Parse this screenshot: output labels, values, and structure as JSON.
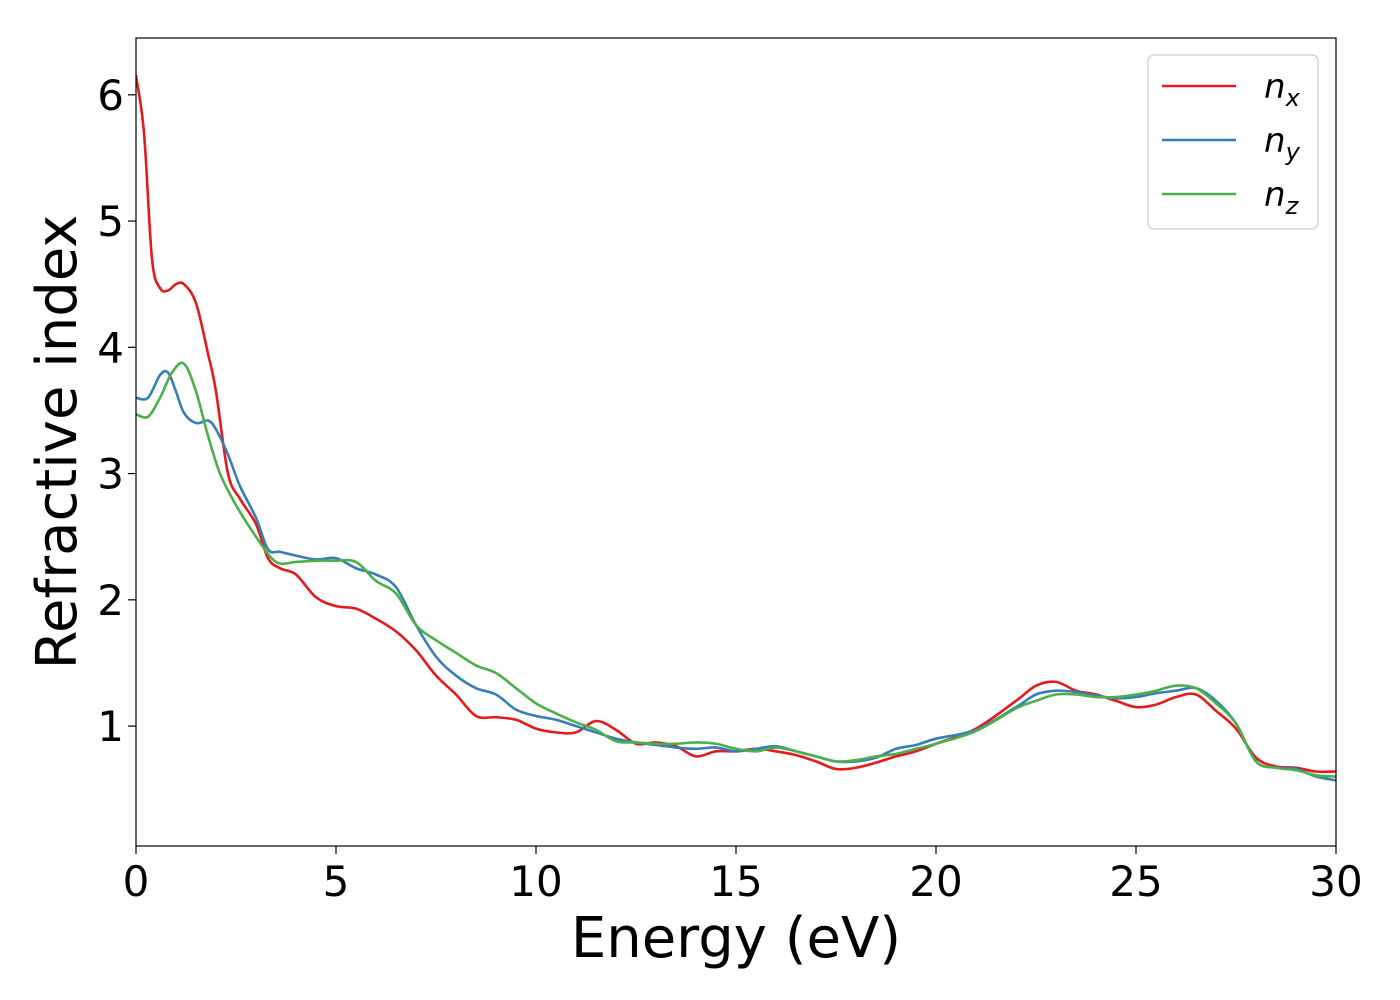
{
  "chart_data": {
    "type": "line",
    "xlabel": "Energy (eV)",
    "ylabel": "Refractive index",
    "xlim": [
      0,
      30
    ],
    "ylim": [
      0.05,
      6.45
    ],
    "xticks": [
      0,
      5,
      10,
      15,
      20,
      25,
      30
    ],
    "xtick_labels": [
      "0",
      "5",
      "10",
      "15",
      "20",
      "25",
      "30"
    ],
    "yticks": [
      1,
      2,
      3,
      4,
      5,
      6
    ],
    "ytick_labels": [
      "1",
      "2",
      "3",
      "4",
      "5",
      "6"
    ],
    "grid": false,
    "legend_position": "top-right",
    "series": [
      {
        "name": "n",
        "subscript": "x",
        "color": "#e41a1c",
        "x": [
          0,
          0.2,
          0.4,
          0.6,
          0.8,
          1.0,
          1.2,
          1.5,
          1.8,
          2.0,
          2.3,
          2.6,
          3.0,
          3.3,
          3.6,
          4.0,
          4.5,
          5.0,
          5.5,
          6.0,
          6.5,
          7.0,
          7.5,
          8.0,
          8.5,
          9.0,
          9.5,
          10.0,
          10.5,
          11.0,
          11.5,
          12.0,
          12.5,
          13.0,
          13.5,
          14.0,
          14.5,
          15.0,
          15.5,
          16.0,
          16.5,
          17.0,
          17.5,
          18.0,
          18.5,
          19.0,
          19.5,
          20.0,
          21.0,
          22.0,
          22.5,
          23.0,
          23.5,
          24.0,
          24.5,
          25.0,
          25.5,
          26.0,
          26.5,
          27.0,
          27.5,
          28.0,
          28.5,
          29.0,
          29.5,
          30.0
        ],
        "values": [
          6.15,
          5.7,
          4.7,
          4.47,
          4.45,
          4.5,
          4.5,
          4.35,
          3.95,
          3.65,
          3.0,
          2.8,
          2.6,
          2.33,
          2.25,
          2.2,
          2.02,
          1.95,
          1.93,
          1.85,
          1.75,
          1.6,
          1.4,
          1.25,
          1.08,
          1.07,
          1.05,
          0.98,
          0.95,
          0.95,
          1.04,
          0.97,
          0.86,
          0.87,
          0.84,
          0.76,
          0.8,
          0.8,
          0.82,
          0.8,
          0.77,
          0.72,
          0.66,
          0.67,
          0.71,
          0.76,
          0.8,
          0.86,
          0.98,
          1.2,
          1.32,
          1.35,
          1.28,
          1.25,
          1.2,
          1.15,
          1.17,
          1.23,
          1.25,
          1.12,
          0.98,
          0.75,
          0.68,
          0.67,
          0.64,
          0.64
        ]
      },
      {
        "name": "n",
        "subscript": "y",
        "color": "#377eb8",
        "x": [
          0,
          0.3,
          0.6,
          0.8,
          1.0,
          1.2,
          1.5,
          1.8,
          2.0,
          2.3,
          2.6,
          3.0,
          3.3,
          3.6,
          4.0,
          4.5,
          5.0,
          5.5,
          6.0,
          6.5,
          7.0,
          7.5,
          8.0,
          8.5,
          9.0,
          9.5,
          10.0,
          10.5,
          11.0,
          11.5,
          12.0,
          12.5,
          13.0,
          13.5,
          14.0,
          14.5,
          15.0,
          15.5,
          16.0,
          16.5,
          17.0,
          17.5,
          18.0,
          18.5,
          19.0,
          19.5,
          20.0,
          21.0,
          22.0,
          22.5,
          23.0,
          23.5,
          24.0,
          24.5,
          25.0,
          25.5,
          26.0,
          26.5,
          27.0,
          27.5,
          28.0,
          28.5,
          29.0,
          29.5,
          30.0
        ],
        "values": [
          3.6,
          3.6,
          3.78,
          3.8,
          3.65,
          3.48,
          3.4,
          3.42,
          3.35,
          3.15,
          2.9,
          2.65,
          2.4,
          2.38,
          2.35,
          2.32,
          2.33,
          2.25,
          2.2,
          2.1,
          1.8,
          1.55,
          1.4,
          1.3,
          1.25,
          1.13,
          1.08,
          1.05,
          1.0,
          0.95,
          0.9,
          0.87,
          0.85,
          0.83,
          0.82,
          0.83,
          0.8,
          0.82,
          0.84,
          0.8,
          0.76,
          0.72,
          0.72,
          0.75,
          0.82,
          0.85,
          0.9,
          0.97,
          1.15,
          1.25,
          1.28,
          1.27,
          1.24,
          1.22,
          1.23,
          1.26,
          1.28,
          1.3,
          1.2,
          1.02,
          0.72,
          0.67,
          0.66,
          0.6,
          0.57
        ]
      },
      {
        "name": "n",
        "subscript": "z",
        "color": "#4daf4a",
        "x": [
          0,
          0.3,
          0.6,
          0.9,
          1.2,
          1.5,
          1.8,
          2.1,
          2.5,
          3.0,
          3.5,
          4.0,
          4.5,
          5.0,
          5.5,
          6.0,
          6.5,
          7.0,
          7.5,
          8.0,
          8.5,
          9.0,
          9.5,
          10.0,
          10.5,
          11.0,
          11.5,
          12.0,
          12.5,
          13.0,
          13.5,
          14.0,
          14.5,
          15.0,
          15.5,
          16.0,
          16.5,
          17.0,
          17.5,
          18.0,
          18.5,
          19.0,
          19.5,
          20.0,
          21.0,
          22.0,
          22.5,
          23.0,
          23.5,
          24.0,
          24.5,
          25.0,
          25.5,
          26.0,
          26.5,
          27.0,
          27.5,
          28.0,
          28.5,
          29.0,
          29.5,
          30.0
        ],
        "values": [
          3.47,
          3.45,
          3.6,
          3.8,
          3.87,
          3.65,
          3.3,
          3.0,
          2.75,
          2.5,
          2.3,
          2.3,
          2.31,
          2.31,
          2.3,
          2.15,
          2.05,
          1.8,
          1.68,
          1.58,
          1.48,
          1.42,
          1.3,
          1.18,
          1.1,
          1.03,
          0.97,
          0.88,
          0.87,
          0.86,
          0.86,
          0.87,
          0.86,
          0.82,
          0.8,
          0.83,
          0.8,
          0.76,
          0.72,
          0.73,
          0.76,
          0.78,
          0.82,
          0.86,
          0.96,
          1.14,
          1.2,
          1.25,
          1.25,
          1.23,
          1.23,
          1.25,
          1.28,
          1.32,
          1.3,
          1.18,
          1.02,
          0.72,
          0.67,
          0.65,
          0.61,
          0.6
        ]
      }
    ]
  }
}
